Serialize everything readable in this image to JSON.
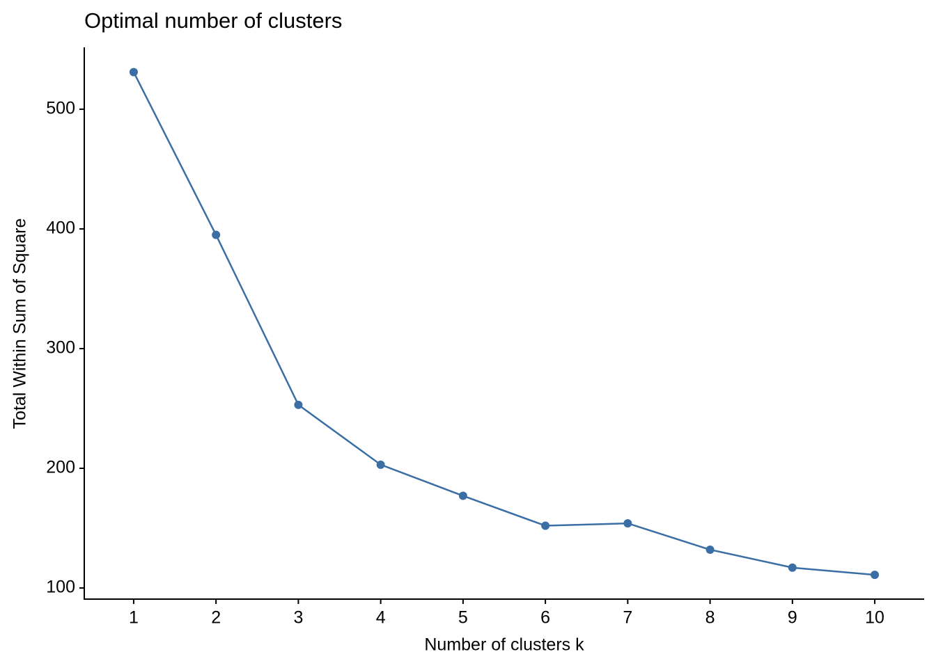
{
  "chart_data": {
    "type": "line",
    "title": "Optimal number of clusters",
    "xlabel": "Number of clusters k",
    "ylabel": "Total Within Sum of Square",
    "x": [
      1,
      2,
      3,
      4,
      5,
      6,
      7,
      8,
      9,
      10
    ],
    "values": [
      531,
      395,
      253,
      203,
      177,
      152,
      154,
      132,
      117,
      111
    ],
    "color": "#3a6ea5",
    "xlim": [
      0.4,
      10.6
    ],
    "xticks": [
      1,
      2,
      3,
      4,
      5,
      6,
      7,
      8,
      9,
      10
    ],
    "ylim": [
      90.7,
      551.7
    ],
    "yticks": [
      100,
      200,
      300,
      400,
      500
    ],
    "grid": false
  }
}
